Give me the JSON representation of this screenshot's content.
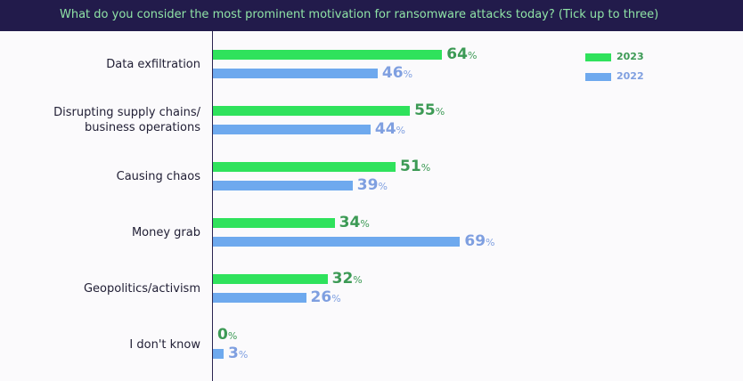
{
  "title": "What do you consider the most prominent motivation for ransomware attacks today? (Tick up to three)",
  "colors": {
    "header": "#221b4b",
    "s2023": "#2fe25c",
    "s2022": "#6ea9ee",
    "t2023": "#3c9a55",
    "t2022": "#7f9fe0"
  },
  "chart_data": {
    "type": "bar",
    "orientation": "horizontal",
    "title": "What do you consider the most prominent motivation for ransomware attacks today? (Tick up to three)",
    "categories": [
      "Data exfiltration",
      "Disrupting supply chains/ business operations",
      "Causing chaos",
      "Money grab",
      "Geopolitics/activism",
      "I don't know"
    ],
    "series": [
      {
        "name": "2023",
        "values": [
          64,
          55,
          51,
          34,
          32,
          0
        ]
      },
      {
        "name": "2022",
        "values": [
          46,
          44,
          39,
          69,
          26,
          3
        ]
      }
    ],
    "unit": "%",
    "legend": "top-right",
    "grid": false
  }
}
